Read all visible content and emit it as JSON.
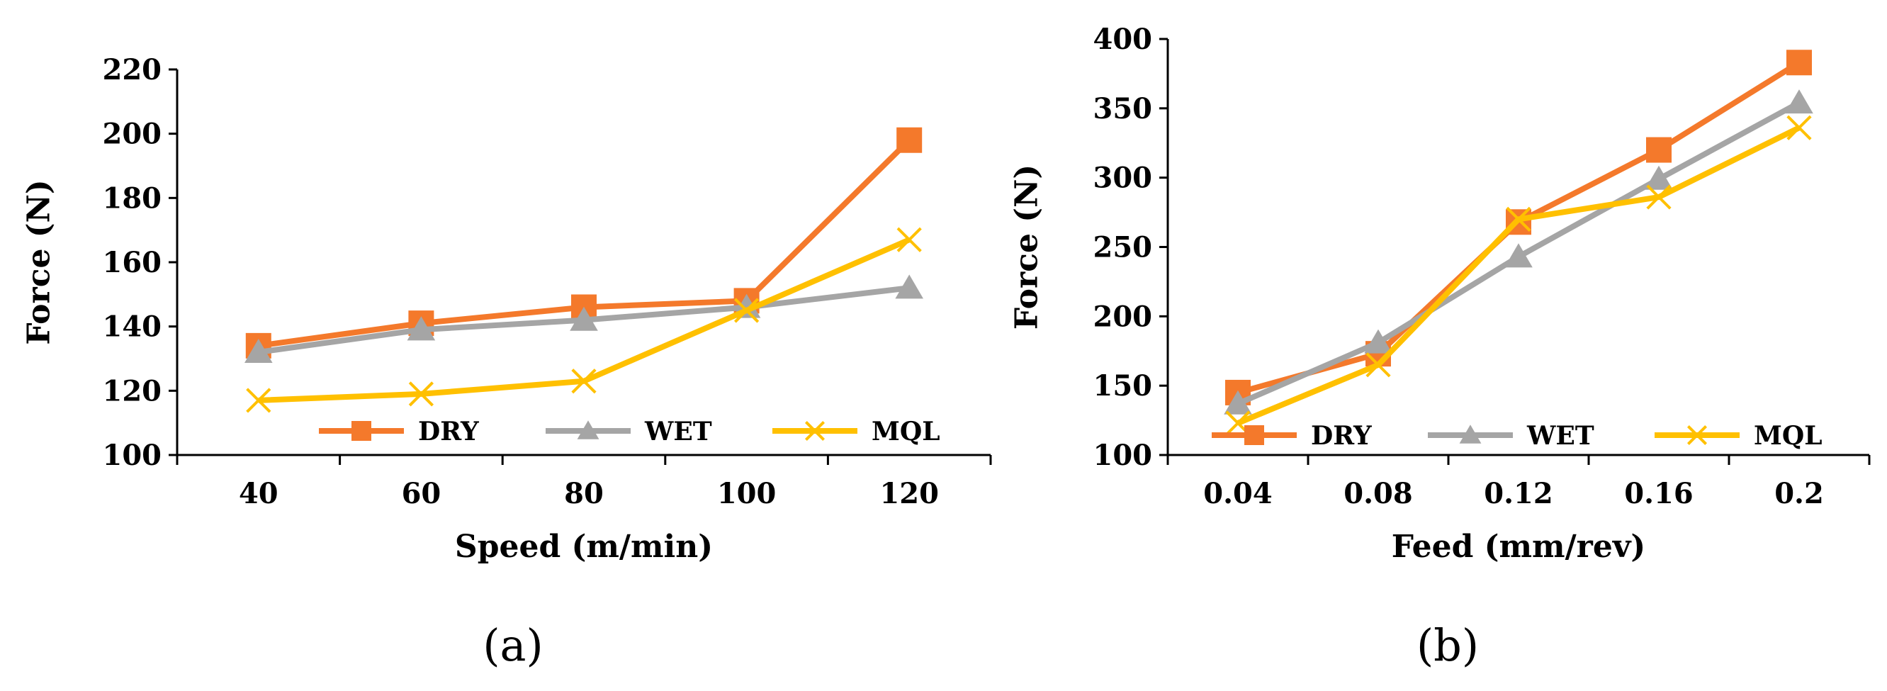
{
  "chart_data": [
    {
      "type": "line",
      "panel_label": "(a)",
      "xlabel": "Speed (m/min)",
      "ylabel": "Force (N)",
      "categories": [
        "40",
        "60",
        "80",
        "100",
        "120"
      ],
      "ylim": [
        100,
        220
      ],
      "yticks": [
        100,
        120,
        140,
        160,
        180,
        200,
        220
      ],
      "grid": false,
      "legend_position": "bottom-right",
      "series": [
        {
          "name": "DRY",
          "color": "#F4792B",
          "marker": "square",
          "values": [
            134,
            141,
            146,
            148,
            198
          ]
        },
        {
          "name": "WET",
          "color": "#A5A5A5",
          "marker": "triangle",
          "values": [
            132,
            139,
            142,
            146,
            152
          ]
        },
        {
          "name": "MQL",
          "color": "#FFC000",
          "marker": "x",
          "values": [
            117,
            119,
            123,
            145,
            167
          ]
        }
      ]
    },
    {
      "type": "line",
      "panel_label": "(b)",
      "xlabel": "Feed (mm/rev)",
      "ylabel": "Force (N)",
      "categories": [
        "0.04",
        "0.08",
        "0.12",
        "0.16",
        "0.2"
      ],
      "ylim": [
        100,
        400
      ],
      "yticks": [
        100,
        150,
        200,
        250,
        300,
        350,
        400
      ],
      "grid": false,
      "legend_position": "bottom",
      "series": [
        {
          "name": "DRY",
          "color": "#F4792B",
          "marker": "square",
          "values": [
            145,
            173,
            268,
            320,
            383
          ]
        },
        {
          "name": "WET",
          "color": "#A5A5A5",
          "marker": "triangle",
          "values": [
            137,
            181,
            243,
            299,
            354
          ]
        },
        {
          "name": "MQL",
          "color": "#FFC000",
          "marker": "x",
          "values": [
            123,
            165,
            270,
            286,
            336
          ]
        }
      ]
    }
  ]
}
